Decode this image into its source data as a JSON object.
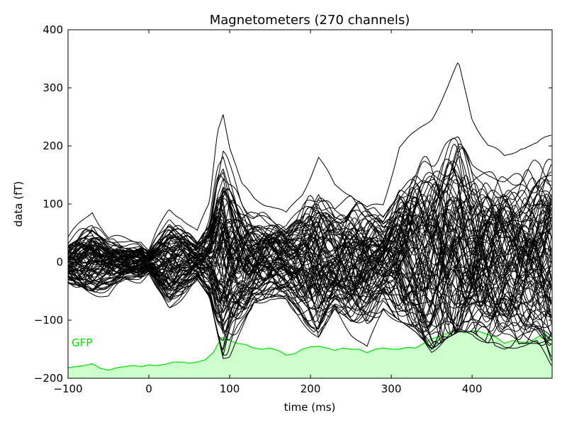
{
  "chart_data": {
    "type": "line",
    "title": "Magnetometers (270 channels)",
    "xlabel": "time (ms)",
    "ylabel": "data (fT)",
    "xlim": [
      -100,
      499
    ],
    "ylim": [
      -200,
      400
    ],
    "x_ticks": [
      -100,
      0,
      100,
      200,
      300,
      400
    ],
    "y_ticks": [
      -200,
      -100,
      0,
      100,
      200,
      300,
      400
    ],
    "x_tick_labels": [
      "−100",
      "0",
      "100",
      "200",
      "300",
      "400"
    ],
    "y_tick_labels": [
      "−200",
      "−100",
      "0",
      "100",
      "200",
      "300",
      "400"
    ],
    "grid": false,
    "channel_count": 270,
    "channel_color": "#000000",
    "channel_envelope": {
      "x": [
        -100,
        -70,
        -50,
        -30,
        -10,
        0,
        10,
        25,
        40,
        60,
        75,
        85,
        92,
        100,
        115,
        130,
        150,
        170,
        190,
        210,
        230,
        250,
        270,
        290,
        310,
        330,
        350,
        370,
        383,
        400,
        420,
        440,
        460,
        480,
        499
      ],
      "max": [
        40,
        90,
        40,
        40,
        40,
        20,
        50,
        90,
        80,
        50,
        100,
        230,
        260,
        200,
        130,
        110,
        100,
        80,
        120,
        180,
        130,
        120,
        90,
        100,
        200,
        220,
        250,
        300,
        340,
        250,
        200,
        180,
        200,
        200,
        220
      ],
      "min": [
        -40,
        -50,
        -60,
        -30,
        -30,
        -20,
        -50,
        -80,
        -60,
        -30,
        -60,
        -120,
        -160,
        -160,
        -120,
        -70,
        -60,
        -70,
        -100,
        -130,
        -80,
        -120,
        -150,
        -80,
        -100,
        -120,
        -150,
        -130,
        -120,
        -120,
        -140,
        -150,
        -140,
        -140,
        -180
      ]
    },
    "series": [
      {
        "name": "GFP",
        "color": "#00e000",
        "fill": "#ccffcc",
        "x": [
          -100,
          -90,
          -80,
          -70,
          -60,
          -50,
          -40,
          -30,
          -20,
          -10,
          0,
          10,
          20,
          30,
          40,
          50,
          60,
          70,
          80,
          90,
          100,
          110,
          120,
          130,
          140,
          150,
          160,
          170,
          180,
          190,
          200,
          210,
          220,
          230,
          240,
          250,
          260,
          270,
          280,
          290,
          300,
          310,
          320,
          330,
          340,
          350,
          360,
          370,
          380,
          390,
          400,
          410,
          420,
          430,
          440,
          450,
          460,
          470,
          480,
          490,
          499
        ],
        "values": [
          -182,
          -180,
          -178,
          -175,
          -183,
          -186,
          -182,
          -180,
          -178,
          -180,
          -177,
          -178,
          -176,
          -172,
          -172,
          -174,
          -172,
          -168,
          -155,
          -130,
          -135,
          -140,
          -142,
          -148,
          -150,
          -148,
          -152,
          -160,
          -158,
          -150,
          -146,
          -145,
          -148,
          -152,
          -148,
          -150,
          -150,
          -156,
          -150,
          -148,
          -150,
          -150,
          -147,
          -148,
          -140,
          -132,
          -128,
          -122,
          -115,
          -122,
          -118,
          -120,
          -125,
          -130,
          -140,
          -135,
          -138,
          -138,
          -130,
          -122,
          -135
        ]
      }
    ]
  }
}
